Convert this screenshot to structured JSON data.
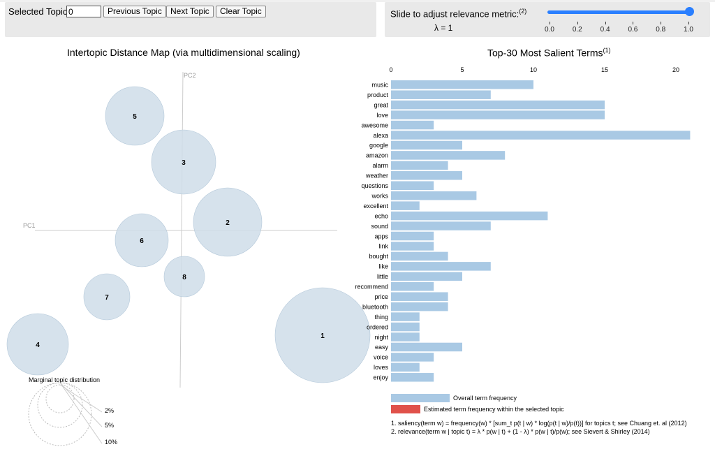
{
  "controls": {
    "selected_topic_label": "Selected Topic:",
    "selected_topic_value": "0",
    "previous_label": "Previous Topic",
    "next_label": "Next Topic",
    "clear_label": "Clear Topic",
    "slider_label": "Slide to adjust relevance metric:",
    "slider_footnote": "(2)",
    "lambda_text": "λ = 1",
    "slider_value": 1.0,
    "slider_ticks": [
      "0.0",
      "0.2",
      "0.4",
      "0.6",
      "0.8",
      "1.0"
    ],
    "accent_color": "#2a7fff"
  },
  "map": {
    "title": "Intertopic Distance Map (via multidimensional scaling)",
    "pc1_label": "PC1",
    "pc2_label": "PC2",
    "topics": [
      "1",
      "2",
      "3",
      "4",
      "5",
      "6",
      "7",
      "8"
    ],
    "circle_color": "#cfdde9",
    "marginal_title": "Marginal topic distribution",
    "marginal_labels": [
      "2%",
      "5%",
      "10%"
    ]
  },
  "bars": {
    "title": "Top-30 Most Salient Terms",
    "title_footnote": "(1)",
    "axis_ticks": [
      "0",
      "5",
      "10",
      "15",
      "20"
    ],
    "bar_color": "#a9c9e4",
    "terms": [
      "music",
      "product",
      "great",
      "love",
      "awesome",
      "alexa",
      "google",
      "amazon",
      "alarm",
      "weather",
      "questions",
      "works",
      "excellent",
      "echo",
      "sound",
      "apps",
      "link",
      "bought",
      "like",
      "little",
      "recommend",
      "price",
      "bluetooth",
      "thing",
      "ordered",
      "night",
      "easy",
      "voice",
      "loves",
      "enjoy"
    ],
    "values": [
      10,
      7,
      15,
      15,
      3,
      21,
      5,
      8,
      4,
      5,
      3,
      6,
      2,
      11,
      7,
      3,
      3,
      4,
      7,
      5,
      3,
      4,
      4,
      2,
      2,
      2,
      5,
      3,
      2,
      3
    ],
    "legend_overall": "Overall term frequency",
    "legend_estimated": "Estimated term frequency within the selected topic",
    "legend_estimated_color": "#e0514a",
    "footnote1": "1. saliency(term w) = frequency(w) * [sum_t p(t | w) * log(p(t | w)/p(t))] for topics t; see Chuang et. al (2012)",
    "footnote2": "2. relevance(term w | topic t) = λ * p(w | t) + (1 - λ) * p(w | t)/p(w); see Sievert & Shirley (2014)"
  }
}
